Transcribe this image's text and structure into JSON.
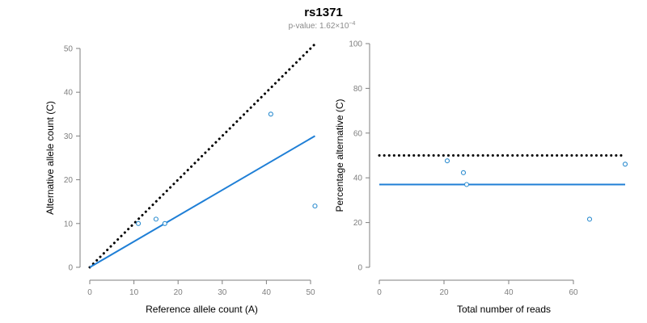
{
  "figure": {
    "title": "rs1371",
    "subtitle_prefix": "p-value: 1.62×10",
    "subtitle_exponent": "−4"
  },
  "colors": {
    "fit_line": "#1f7fd6",
    "points": "#2b8ccf",
    "reference_line": "#000000",
    "axis": "#7f7f7f"
  },
  "chart_data": [
    {
      "type": "scatter",
      "title": "",
      "xlabel": "Reference allele count (A)",
      "ylabel": "Alternative allele count (C)",
      "xlim": [
        0,
        50
      ],
      "ylim": [
        0,
        50
      ],
      "xticks": [
        0,
        10,
        20,
        30,
        40,
        50
      ],
      "yticks": [
        0,
        10,
        20,
        30,
        40,
        50
      ],
      "grid": false,
      "series": [
        {
          "type": "scatter",
          "x": [
            11,
            15,
            17,
            41,
            51
          ],
          "y": [
            10,
            11,
            10,
            35,
            14
          ]
        }
      ],
      "lines": [
        {
          "style": "dotted",
          "color": "#000000",
          "x": [
            0,
            51
          ],
          "y": [
            0,
            51
          ]
        },
        {
          "style": "solid",
          "color": "#1f7fd6",
          "x": [
            0,
            51
          ],
          "y": [
            0,
            30
          ]
        }
      ]
    },
    {
      "type": "scatter",
      "title": "",
      "xlabel": "Total number of reads",
      "ylabel": "Percentage alternative (C)",
      "xlim": [
        0,
        76
      ],
      "ylim": [
        0,
        100
      ],
      "xticks": [
        0,
        20,
        40,
        60
      ],
      "yticks": [
        0,
        20,
        40,
        60,
        80,
        100
      ],
      "grid": false,
      "series": [
        {
          "type": "scatter",
          "x": [
            21,
            26,
            27,
            65,
            76
          ],
          "y": [
            47.6,
            42.3,
            37.0,
            21.5,
            46.1
          ]
        }
      ],
      "lines": [
        {
          "style": "dotted",
          "color": "#000000",
          "x": [
            0,
            76
          ],
          "y": [
            50,
            50
          ]
        },
        {
          "style": "solid",
          "color": "#1f7fd6",
          "x": [
            0,
            76
          ],
          "y": [
            37,
            37
          ]
        }
      ]
    }
  ]
}
